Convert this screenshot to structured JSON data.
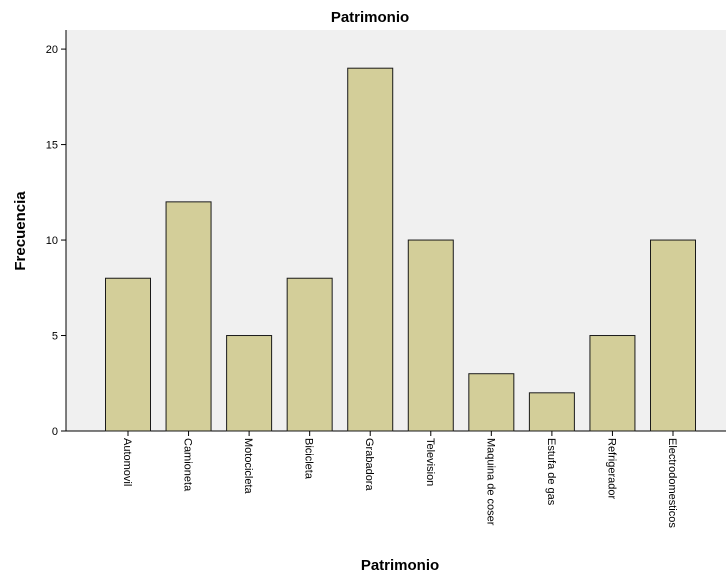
{
  "chart_data": {
    "type": "bar",
    "title": "Patrimonio",
    "xlabel": "Patrimonio",
    "ylabel": "Frecuencia",
    "categories": [
      "Automovil",
      "Camioneta",
      "Motocicleta",
      "Bicicleta",
      "Grabadora",
      "Television",
      "Maquina de coser",
      "Estufa de gas",
      "Refrigerador",
      "Electrodomesticos"
    ],
    "values": [
      8,
      12,
      5,
      8,
      19,
      10,
      3,
      2,
      5,
      10
    ],
    "ylim": [
      0,
      21
    ],
    "yticks": [
      0,
      5,
      10,
      15,
      20
    ],
    "grid": false,
    "colors": {
      "bar_fill": "#d3ce99",
      "bar_stroke": "#1a1a1a",
      "plot_background": "#f0f0f0"
    }
  }
}
